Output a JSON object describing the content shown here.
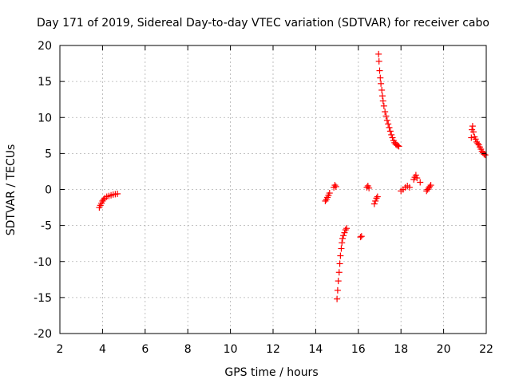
{
  "chart_data": {
    "type": "scatter",
    "title": "Day 171 of 2019, Sidereal Day-to-day VTEC variation (SDTVAR) for receiver cabo",
    "xlabel": "GPS time / hours",
    "ylabel": "SDTVAR / TECUs",
    "xlim": [
      2,
      22
    ],
    "ylim": [
      -20,
      20
    ],
    "xticks": [
      2,
      4,
      6,
      8,
      10,
      12,
      14,
      16,
      18,
      20,
      22
    ],
    "yticks": [
      -20,
      -15,
      -10,
      -5,
      0,
      5,
      10,
      15,
      20
    ],
    "grid": true,
    "marker": "+",
    "marker_color": "#ff0000",
    "series": [
      {
        "name": "SDTVAR",
        "points": [
          [
            3.85,
            -2.5
          ],
          [
            3.9,
            -2.2
          ],
          [
            3.95,
            -1.9
          ],
          [
            4.0,
            -1.6
          ],
          [
            4.05,
            -1.4
          ],
          [
            4.1,
            -1.2
          ],
          [
            4.2,
            -1.0
          ],
          [
            4.3,
            -0.9
          ],
          [
            4.4,
            -0.8
          ],
          [
            4.5,
            -0.7
          ],
          [
            4.6,
            -0.65
          ],
          [
            4.7,
            -0.6
          ],
          [
            14.45,
            -1.6
          ],
          [
            14.5,
            -1.4
          ],
          [
            14.55,
            -1.1
          ],
          [
            14.6,
            -0.8
          ],
          [
            14.65,
            -0.5
          ],
          [
            14.85,
            0.3
          ],
          [
            14.9,
            0.6
          ],
          [
            14.95,
            0.4
          ],
          [
            15.0,
            -15.2
          ],
          [
            15.03,
            -14.0
          ],
          [
            15.06,
            -12.7
          ],
          [
            15.1,
            -11.5
          ],
          [
            15.13,
            -10.3
          ],
          [
            15.16,
            -9.2
          ],
          [
            15.2,
            -8.2
          ],
          [
            15.23,
            -7.4
          ],
          [
            15.26,
            -6.8
          ],
          [
            15.3,
            -6.4
          ],
          [
            15.35,
            -6.0
          ],
          [
            15.4,
            -5.6
          ],
          [
            15.45,
            -5.4
          ],
          [
            16.1,
            -6.6
          ],
          [
            16.15,
            -6.5
          ],
          [
            16.4,
            0.3
          ],
          [
            16.45,
            0.5
          ],
          [
            16.5,
            0.2
          ],
          [
            16.75,
            -2.0
          ],
          [
            16.8,
            -1.6
          ],
          [
            16.85,
            -1.2
          ],
          [
            16.9,
            -1.0
          ],
          [
            16.95,
            18.8
          ],
          [
            16.97,
            17.8
          ],
          [
            17.0,
            16.5
          ],
          [
            17.03,
            15.5
          ],
          [
            17.06,
            14.7
          ],
          [
            17.1,
            13.8
          ],
          [
            17.13,
            13.0
          ],
          [
            17.16,
            12.3
          ],
          [
            17.2,
            11.6
          ],
          [
            17.25,
            10.8
          ],
          [
            17.3,
            10.2
          ],
          [
            17.35,
            9.6
          ],
          [
            17.4,
            9.1
          ],
          [
            17.45,
            8.6
          ],
          [
            17.5,
            8.1
          ],
          [
            17.55,
            7.6
          ],
          [
            17.6,
            7.2
          ],
          [
            17.65,
            6.8
          ],
          [
            17.7,
            6.5
          ],
          [
            17.75,
            6.3
          ],
          [
            17.8,
            6.2
          ],
          [
            17.85,
            6.1
          ],
          [
            17.9,
            6.0
          ],
          [
            18.0,
            -0.2
          ],
          [
            18.1,
            0.0
          ],
          [
            18.2,
            0.3
          ],
          [
            18.3,
            0.5
          ],
          [
            18.4,
            0.3
          ],
          [
            18.6,
            1.4
          ],
          [
            18.65,
            1.7
          ],
          [
            18.7,
            2.0
          ],
          [
            18.75,
            1.6
          ],
          [
            18.9,
            1.0
          ],
          [
            19.2,
            -0.2
          ],
          [
            19.25,
            0.0
          ],
          [
            19.3,
            0.2
          ],
          [
            19.35,
            0.4
          ],
          [
            19.4,
            0.6
          ],
          [
            21.3,
            7.2
          ],
          [
            21.33,
            8.3
          ],
          [
            21.36,
            8.8
          ],
          [
            21.4,
            8.0
          ],
          [
            21.45,
            7.3
          ],
          [
            21.5,
            7.0
          ],
          [
            21.55,
            6.6
          ],
          [
            21.6,
            6.4
          ],
          [
            21.65,
            6.2
          ],
          [
            21.7,
            5.9
          ],
          [
            21.75,
            5.6
          ],
          [
            21.8,
            5.3
          ],
          [
            21.85,
            5.1
          ],
          [
            21.9,
            4.9
          ],
          [
            21.95,
            4.8
          ]
        ]
      }
    ]
  }
}
